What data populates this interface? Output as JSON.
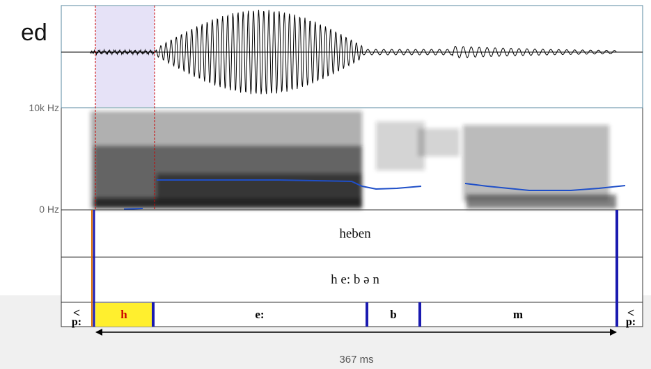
{
  "left_text": "ed",
  "axis": {
    "top": "10k Hz",
    "bottom": "0 Hz"
  },
  "tiers": {
    "word": "heben",
    "phonemes": "h e: b ə n",
    "segments": [
      {
        "top": "<",
        "bottom": "p:"
      },
      {
        "label": "h"
      },
      {
        "label": "e:"
      },
      {
        "label": "b"
      },
      {
        "label": "m"
      },
      {
        "top": "<",
        "bottom": "p:"
      }
    ]
  },
  "duration": "367 ms"
}
